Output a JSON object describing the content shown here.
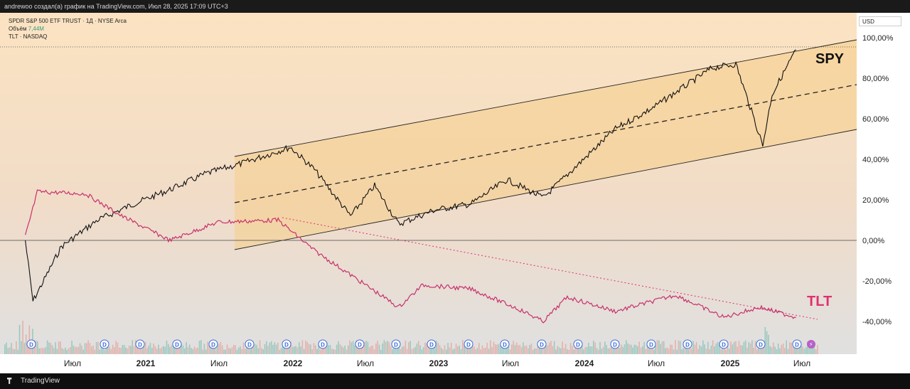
{
  "header": {
    "author_line": "andrewoo создал(а) график на TradingView.com, Июл 28, 2025 17:09 UTC+3"
  },
  "legend": {
    "primary": "SPDR S&P 500 ETF TRUST · 1Д · NYSE Arca",
    "volume_label": "Объём",
    "volume_value": "7,44M",
    "secondary": "TLT · NASDAQ"
  },
  "currency": "USD",
  "footer": {
    "brand": "TradingView"
  },
  "colors": {
    "spy": "#111111",
    "tlt": "#c8306c",
    "channel_fill": "#f8cf8a",
    "bg_top": "#fbe4c3",
    "bg_bottom": "#e2e2e2"
  },
  "chart_data": {
    "type": "line",
    "series": [
      {
        "name": "SPY",
        "points": [
          [
            "2020-03",
            0
          ],
          [
            "2020-03-20",
            -30
          ],
          [
            "2020-06",
            -3
          ],
          [
            "2020-09",
            10
          ],
          [
            "2020-12",
            18
          ],
          [
            "2021-03",
            25
          ],
          [
            "2021-06",
            33
          ],
          [
            "2021-09",
            38
          ],
          [
            "2022-01",
            46
          ],
          [
            "2022-03",
            35
          ],
          [
            "2022-06",
            12
          ],
          [
            "2022-08",
            27
          ],
          [
            "2022-10",
            8
          ],
          [
            "2023-01",
            15
          ],
          [
            "2023-04",
            18
          ],
          [
            "2023-07",
            30
          ],
          [
            "2023-10",
            21
          ],
          [
            "2024-01",
            38
          ],
          [
            "2024-04",
            55
          ],
          [
            "2024-07",
            65
          ],
          [
            "2024-10",
            77
          ],
          [
            "2024-12",
            85
          ],
          [
            "2025-02",
            87
          ],
          [
            "2025-04-08",
            47
          ],
          [
            "2025-05",
            72
          ],
          [
            "2025-07",
            94
          ]
        ]
      },
      {
        "name": "TLT",
        "points": [
          [
            "2020-03",
            2
          ],
          [
            "2020-04",
            24
          ],
          [
            "2020-08",
            23
          ],
          [
            "2020-11",
            12
          ],
          [
            "2021-03",
            0
          ],
          [
            "2021-07",
            9
          ],
          [
            "2021-12",
            10
          ],
          [
            "2022-03",
            -5
          ],
          [
            "2022-06",
            -17
          ],
          [
            "2022-10",
            -33
          ],
          [
            "2022-12",
            -22
          ],
          [
            "2023-04",
            -24
          ],
          [
            "2023-08",
            -34
          ],
          [
            "2023-10",
            -40
          ],
          [
            "2023-12",
            -28
          ],
          [
            "2024-04",
            -35
          ],
          [
            "2024-09",
            -27
          ],
          [
            "2025-01",
            -38
          ],
          [
            "2025-04",
            -33
          ],
          [
            "2025-07",
            -38
          ]
        ]
      }
    ],
    "y_ticks": [
      "100,00%",
      "80,00%",
      "60,00%",
      "40,00%",
      "20,00%",
      "0,00%",
      "-20,00%",
      "-40,00%"
    ],
    "x_ticks": [
      "Июл",
      "2021",
      "Июл",
      "2022",
      "Июл",
      "2023",
      "Июл",
      "2024",
      "Июл",
      "2025",
      "Июл"
    ],
    "annotations": [
      "SPY",
      "TLT"
    ],
    "ylim": [
      -50,
      105
    ],
    "volume_marker": "D"
  }
}
